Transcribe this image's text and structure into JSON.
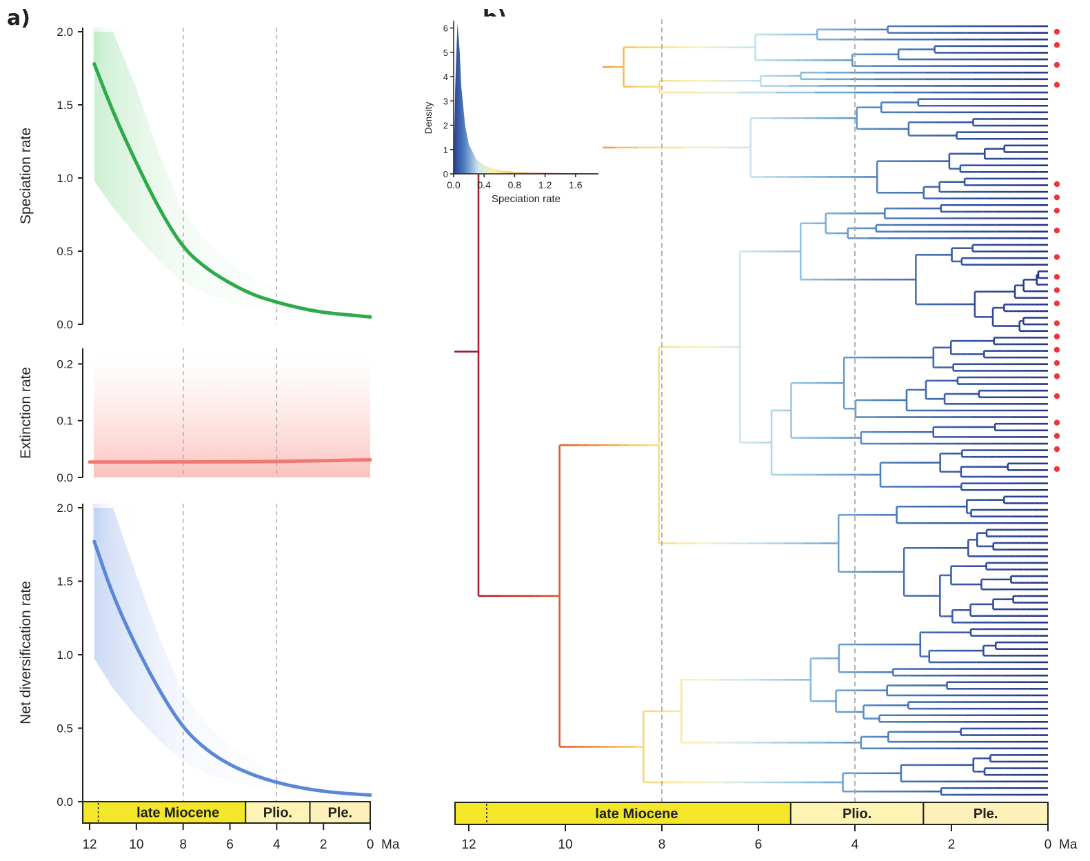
{
  "panel_a": {
    "label": "a)",
    "x_unit": "Ma",
    "x_ticks": [
      "12",
      "10",
      "8",
      "6",
      "4",
      "2",
      "0"
    ],
    "epochs": [
      {
        "name": "late Miocene",
        "from": 11.63,
        "to": 5.33,
        "color": "#f4e628"
      },
      {
        "name": "Plio.",
        "from": 5.33,
        "to": 2.58,
        "color": "#fdf3b2"
      },
      {
        "name": "Ple.",
        "from": 2.58,
        "to": 0,
        "color": "#fdf0b8"
      }
    ],
    "epoch_boundary_dashed": 11.63,
    "dashed_lines_at": [
      8,
      4
    ]
  },
  "panel_b": {
    "label": "b)",
    "x_unit": "Ma",
    "x_ticks": [
      "12",
      "10",
      "8",
      "6",
      "4",
      "2",
      "0"
    ],
    "epochs": [
      {
        "name": "late Miocene",
        "from": 11.63,
        "to": 5.33,
        "color": "#f4e628"
      },
      {
        "name": "Plio.",
        "from": 5.33,
        "to": 2.58,
        "color": "#fdf3b2"
      },
      {
        "name": "Ple.",
        "from": 2.58,
        "to": 0,
        "color": "#fdf0b8"
      }
    ],
    "dashed_lines_at": [
      8,
      4
    ],
    "tip_count": 117,
    "marked_tip_count": 22,
    "marker_color": "#e8383d",
    "inset": {
      "xlabel": "Speciation rate",
      "ylabel": "Density",
      "x_ticks": [
        "0.0",
        "0.4",
        "0.8",
        "1.2",
        "1.6"
      ],
      "y_ticks": [
        "0",
        "1",
        "2",
        "3",
        "4",
        "5",
        "6"
      ]
    }
  },
  "chart_data": [
    {
      "type": "line",
      "ylabel": "Speciation rate",
      "xlabel": "",
      "xlim": [
        12,
        0
      ],
      "ylim": [
        0,
        2.0
      ],
      "y_ticks": [
        "0.0",
        "0.5",
        "1.0",
        "1.5",
        "2.0"
      ],
      "color": "#2daa4a",
      "series": [
        {
          "x": [
            11.8,
            11,
            10,
            9,
            8,
            7,
            6,
            5,
            4,
            3,
            2,
            1,
            0
          ],
          "values": [
            1.78,
            1.45,
            1.1,
            0.78,
            0.52,
            0.38,
            0.28,
            0.2,
            0.15,
            0.11,
            0.08,
            0.065,
            0.05
          ]
        }
      ]
    },
    {
      "type": "line",
      "ylabel": "Extinction rate",
      "xlabel": "",
      "xlim": [
        12,
        0
      ],
      "ylim": [
        0,
        0.22
      ],
      "y_ticks": [
        "0.0",
        "0.1",
        "0.2"
      ],
      "color": "#f07a72",
      "series": [
        {
          "x": [
            12,
            8,
            4,
            0
          ],
          "values": [
            0.027,
            0.027,
            0.028,
            0.031
          ]
        }
      ]
    },
    {
      "type": "line",
      "ylabel": "Net diversification rate",
      "xlabel": "",
      "xlim": [
        12,
        0
      ],
      "ylim": [
        0,
        2.0
      ],
      "y_ticks": [
        "0.0",
        "0.5",
        "1.0",
        "1.5",
        "2.0"
      ],
      "color": "#5b88d6",
      "series": [
        {
          "x": [
            11.8,
            11,
            10,
            9,
            8,
            7,
            6,
            5,
            4,
            3,
            2,
            1,
            0
          ],
          "values": [
            1.77,
            1.4,
            1.05,
            0.75,
            0.5,
            0.35,
            0.25,
            0.18,
            0.13,
            0.095,
            0.07,
            0.055,
            0.045
          ]
        }
      ]
    },
    {
      "type": "area",
      "xlabel": "Speciation rate",
      "ylabel": "Density",
      "xlim": [
        0,
        1.9
      ],
      "ylim": [
        0,
        6.3
      ],
      "series": [
        {
          "x": [
            0.0,
            0.02,
            0.05,
            0.08,
            0.1,
            0.15,
            0.2,
            0.3,
            0.4,
            0.6,
            0.8,
            1.0,
            1.4,
            1.9
          ],
          "values": [
            0.2,
            3.5,
            6.2,
            5.0,
            3.6,
            2.0,
            1.2,
            0.6,
            0.35,
            0.15,
            0.08,
            0.05,
            0.03,
            0.02
          ]
        }
      ]
    }
  ]
}
